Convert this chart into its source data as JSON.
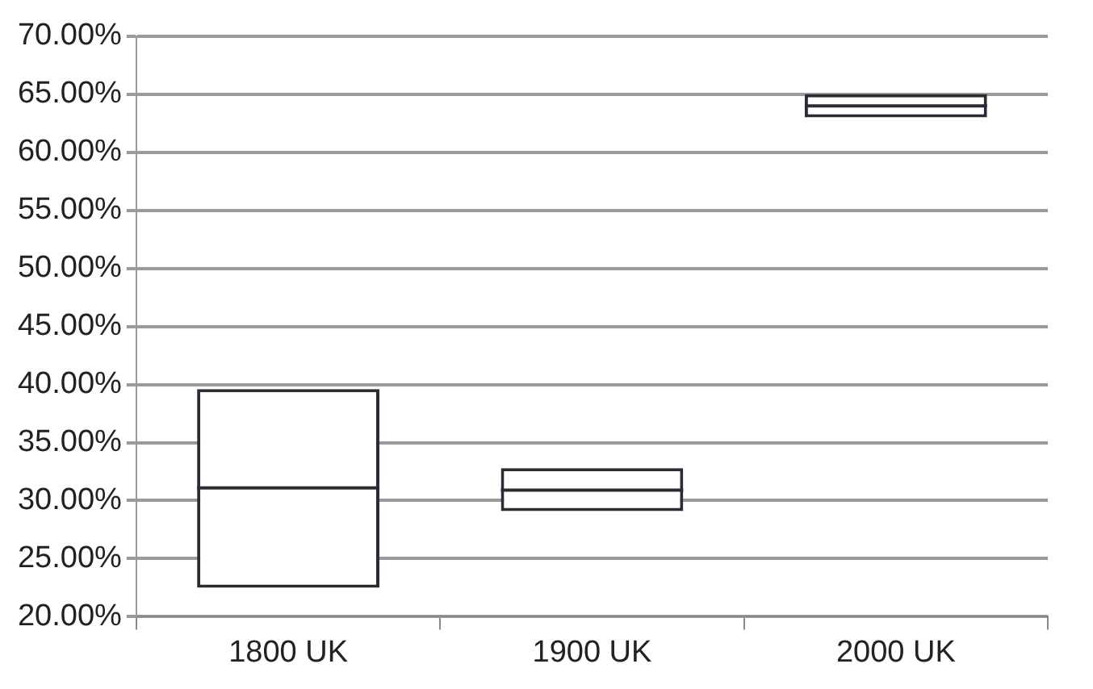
{
  "chart_data": {
    "type": "box",
    "categories": [
      "1800 UK",
      "1900 UK",
      "2000 UK"
    ],
    "boxes": [
      {
        "low": 22.5,
        "q1": 22.5,
        "median": 31.1,
        "q3": 39.6,
        "high": 39.6
      },
      {
        "low": 29.1,
        "q1": 29.1,
        "median": 30.9,
        "q3": 32.8,
        "high": 32.8
      },
      {
        "low": 63.0,
        "q1": 63.0,
        "median": 64.0,
        "q3": 65.0,
        "high": 65.0
      }
    ],
    "color": "#2b2b35",
    "ylim": [
      20,
      70
    ],
    "yticks": [
      {
        "value": 20,
        "label": "20.00%"
      },
      {
        "value": 25,
        "label": "25.00%"
      },
      {
        "value": 30,
        "label": "30.00%"
      },
      {
        "value": 35,
        "label": "35.00%"
      },
      {
        "value": 40,
        "label": "40.00%"
      },
      {
        "value": 45,
        "label": "45.00%"
      },
      {
        "value": 50,
        "label": "50.00%"
      },
      {
        "value": 55,
        "label": "55.00%"
      },
      {
        "value": 60,
        "label": "60.00%"
      },
      {
        "value": 65,
        "label": "65.00%"
      },
      {
        "value": 70,
        "label": "70.00%"
      }
    ],
    "grid": "y",
    "legend": false
  }
}
